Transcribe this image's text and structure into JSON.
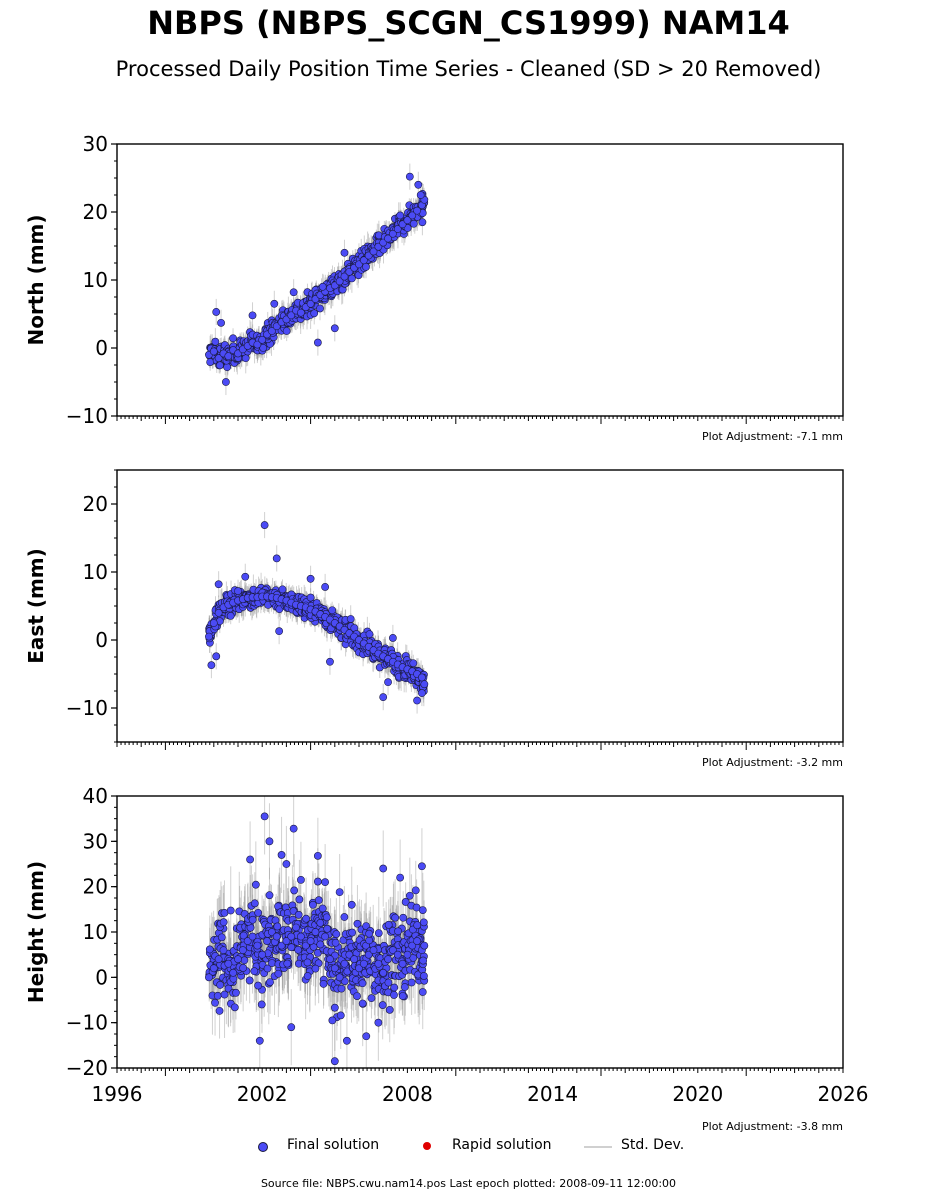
{
  "header": {
    "title": "NBPS (NBPS_SCGN_CS1999) NAM14",
    "subtitle": "Processed Daily Position Time Series - Cleaned (SD > 20 Removed)"
  },
  "legend": {
    "final_label": "Final solution",
    "rapid_label": "Rapid solution",
    "std_label": "Std. Dev."
  },
  "footer": {
    "source": "Source file: NBPS.cwu.nam14.pos  Last epoch plotted: 2008-09-11 12:00:00"
  },
  "colors": {
    "final": "#4b4bf5",
    "rapid": "#e00000",
    "std": "#c0c0c0",
    "marker_edge": "#1a1a40"
  },
  "chart_data": [
    {
      "type": "scatter",
      "ylabel": "North (mm)",
      "xlabel": "",
      "xlim": [
        1996,
        2026
      ],
      "ylim": [
        -10,
        30
      ],
      "yticks": [
        -10,
        0,
        10,
        20,
        30
      ],
      "xticks": [
        1996,
        2002,
        2008,
        2014,
        2020,
        2026
      ],
      "show_x_tick_labels": false,
      "adjustment": "Plot Adjustment: -7.1 mm",
      "series": [
        {
          "kind": "final",
          "x": [
            1999.8,
            2000.0,
            2000.2,
            2000.4,
            2000.6,
            2000.8,
            2001.0,
            2001.2,
            2001.4,
            2001.6,
            2001.8,
            2002.0,
            2002.2,
            2002.4,
            2002.6,
            2002.8,
            2003.0,
            2003.2,
            2003.4,
            2003.6,
            2003.8,
            2004.0,
            2004.2,
            2004.4,
            2004.6,
            2004.8,
            2005.0,
            2005.2,
            2005.4,
            2005.6,
            2005.8,
            2006.0,
            2006.2,
            2006.4,
            2006.6,
            2006.8,
            2007.0,
            2007.2,
            2007.4,
            2007.6,
            2007.8,
            2008.0,
            2008.2,
            2008.4,
            2008.6,
            2008.7
          ],
          "y": [
            -1.0,
            -0.5,
            -1.5,
            -0.8,
            -1.2,
            -0.3,
            -0.8,
            -0.2,
            0.3,
            0.8,
            0.5,
            1.2,
            2.0,
            2.5,
            3.2,
            3.8,
            4.2,
            4.8,
            5.5,
            5.2,
            6.0,
            6.5,
            7.2,
            7.8,
            8.3,
            8.8,
            9.2,
            9.8,
            10.5,
            11.2,
            11.8,
            12.3,
            12.9,
            13.6,
            14.2,
            14.9,
            15.5,
            16.1,
            16.8,
            17.5,
            18.2,
            18.8,
            19.5,
            20.2,
            21.0,
            21.8
          ]
        },
        {
          "kind": "outliers",
          "x": [
            2000.1,
            2000.3,
            2000.5,
            2001.6,
            2002.5,
            2003.3,
            2004.3,
            2004.5,
            2005.0,
            2005.4,
            2007.7,
            2008.1,
            2008.45,
            2008.55,
            2008.62
          ],
          "y": [
            5.3,
            3.7,
            -5.0,
            4.8,
            6.5,
            8.2,
            0.8,
            9.0,
            2.9,
            14.0,
            19.5,
            25.2,
            24.0,
            22.5,
            18.5
          ]
        }
      ]
    },
    {
      "type": "scatter",
      "ylabel": "East (mm)",
      "xlabel": "",
      "xlim": [
        1996,
        2026
      ],
      "ylim": [
        -15,
        25
      ],
      "yticks": [
        -10,
        0,
        10,
        20
      ],
      "xticks": [
        1996,
        2002,
        2008,
        2014,
        2020,
        2026
      ],
      "show_x_tick_labels": false,
      "adjustment": "Plot Adjustment: -3.2 mm",
      "series": [
        {
          "kind": "final",
          "x": [
            1999.8,
            2000.0,
            2000.2,
            2000.4,
            2000.6,
            2000.8,
            2001.0,
            2001.2,
            2001.4,
            2001.6,
            2001.8,
            2002.0,
            2002.2,
            2002.4,
            2002.6,
            2002.8,
            2003.0,
            2003.2,
            2003.4,
            2003.6,
            2003.8,
            2004.0,
            2004.2,
            2004.4,
            2004.6,
            2004.8,
            2005.0,
            2005.2,
            2005.4,
            2005.6,
            2005.8,
            2006.0,
            2006.2,
            2006.4,
            2006.6,
            2006.8,
            2007.0,
            2007.2,
            2007.4,
            2007.6,
            2007.8,
            2008.0,
            2008.2,
            2008.4,
            2008.6,
            2008.7
          ],
          "y": [
            0.5,
            2.5,
            4.0,
            4.8,
            5.2,
            5.5,
            5.8,
            6.0,
            6.2,
            6.3,
            6.3,
            6.4,
            6.4,
            6.3,
            6.2,
            6.0,
            5.8,
            5.5,
            5.2,
            5.0,
            4.8,
            4.5,
            4.2,
            3.8,
            3.4,
            3.0,
            2.5,
            2.0,
            1.5,
            1.0,
            0.5,
            0.0,
            -0.5,
            -1.0,
            -1.5,
            -2.0,
            -2.4,
            -2.8,
            -3.2,
            -3.6,
            -4.0,
            -4.3,
            -4.6,
            -5.0,
            -5.5,
            -6.5
          ]
        },
        {
          "kind": "outliers",
          "x": [
            1999.9,
            2000.1,
            2000.2,
            2001.3,
            2002.1,
            2002.6,
            2002.7,
            2004.0,
            2004.6,
            2004.8,
            2007.0,
            2007.2,
            2007.4,
            2008.4,
            2008.6
          ],
          "y": [
            -3.7,
            -2.4,
            8.2,
            9.3,
            16.9,
            12.0,
            1.3,
            9.0,
            7.8,
            -3.2,
            -8.4,
            -6.2,
            0.3,
            -8.9,
            -7.8
          ]
        }
      ]
    },
    {
      "type": "scatter",
      "ylabel": "Height (mm)",
      "xlabel": "",
      "xlim": [
        1996,
        2026
      ],
      "ylim": [
        -20,
        40
      ],
      "yticks": [
        -20,
        -10,
        0,
        10,
        20,
        30,
        40
      ],
      "xticks": [
        1996,
        2002,
        2008,
        2014,
        2020,
        2026
      ],
      "show_x_tick_labels": true,
      "adjustment": "Plot Adjustment: -3.8 mm",
      "series": [
        {
          "kind": "final",
          "x": [
            1999.8,
            2000.0,
            2000.2,
            2000.4,
            2000.6,
            2000.8,
            2001.0,
            2001.2,
            2001.4,
            2001.6,
            2001.8,
            2002.0,
            2002.2,
            2002.4,
            2002.6,
            2002.8,
            2003.0,
            2003.2,
            2003.4,
            2003.6,
            2003.8,
            2004.0,
            2004.2,
            2004.4,
            2004.6,
            2004.8,
            2005.0,
            2005.2,
            2005.4,
            2005.6,
            2005.8,
            2006.0,
            2006.2,
            2006.4,
            2006.6,
            2006.8,
            2007.0,
            2007.2,
            2007.4,
            2007.6,
            2007.8,
            2008.0,
            2008.2,
            2008.4,
            2008.6,
            2008.7
          ],
          "y": [
            0.0,
            2.0,
            4.0,
            6.0,
            3.0,
            1.0,
            4.0,
            6.0,
            8.0,
            9.0,
            7.0,
            5.0,
            8.0,
            10.0,
            9.0,
            7.0,
            8.0,
            9.0,
            11.0,
            9.0,
            7.0,
            8.0,
            10.0,
            12.0,
            9.0,
            4.0,
            2.0,
            0.0,
            3.0,
            5.0,
            4.0,
            2.0,
            3.0,
            5.0,
            6.0,
            3.0,
            1.0,
            4.0,
            6.0,
            5.0,
            3.0,
            5.0,
            7.0,
            8.0,
            6.0,
            7.0
          ]
        },
        {
          "kind": "outliers",
          "x": [
            2001.5,
            2002.1,
            2002.3,
            2002.8,
            2003.0,
            2003.3,
            2003.6,
            2004.3,
            2004.6,
            2005.0,
            2005.2,
            2005.5,
            2006.3,
            2007.0,
            2007.7,
            2008.1,
            2008.6,
            2001.9,
            2003.2,
            2004.9,
            2005.7,
            2006.8
          ],
          "y": [
            26.0,
            35.5,
            30.0,
            27.0,
            25.0,
            32.8,
            21.5,
            26.8,
            21.0,
            -18.5,
            18.8,
            -14.0,
            -13.0,
            24.0,
            22.0,
            18.0,
            24.5,
            -14.0,
            -11.0,
            -9.5,
            16.0,
            -10.0
          ]
        }
      ]
    }
  ]
}
